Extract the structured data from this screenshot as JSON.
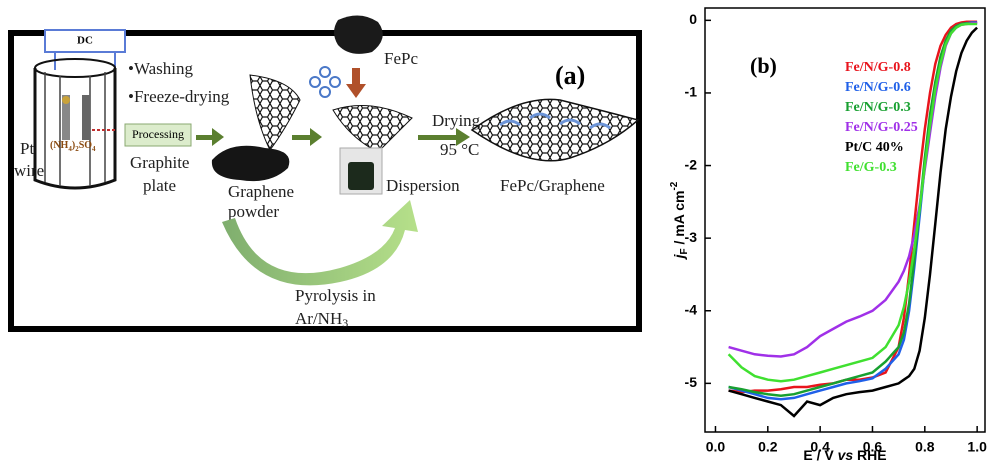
{
  "panel_a": {
    "label": "(a)",
    "power": "DC",
    "electrode": [
      "Pt",
      "wire"
    ],
    "electrolyte": [
      "(NH",
      "4",
      ")",
      "2",
      "SO",
      "4"
    ],
    "steps": [
      "•Washing",
      "•Freeze-drying"
    ],
    "processing": "Processing",
    "graphite": [
      "Graphite",
      "plate"
    ],
    "graphene": [
      "Graphene",
      "powder"
    ],
    "fepc": "FePc",
    "dispersion": "Dispersion",
    "drying": [
      "Drying",
      "95 °C"
    ],
    "product": "FePc/Graphene",
    "pyrolysis": [
      "Pyrolysis in",
      "Ar/NH",
      "3"
    ]
  },
  "chart_data": {
    "type": "line",
    "label": "(b)",
    "xlabel": [
      "E / V ",
      "vs",
      " RHE"
    ],
    "ylabel": [
      "j",
      "F",
      " / mA cm",
      "-2"
    ],
    "x": [
      0.05,
      0.1,
      0.15,
      0.2,
      0.25,
      0.3,
      0.35,
      0.4,
      0.45,
      0.5,
      0.55,
      0.6,
      0.65,
      0.7,
      0.72,
      0.74,
      0.76,
      0.78,
      0.8,
      0.82,
      0.84,
      0.86,
      0.88,
      0.9,
      0.92,
      0.94,
      0.96,
      0.98,
      1.0
    ],
    "series": [
      {
        "name": "Fe/N/G-0.8",
        "color": "#e8141c",
        "values": [
          -5.1,
          -5.12,
          -5.1,
          -5.1,
          -5.08,
          -5.05,
          -5.05,
          -5.02,
          -5.0,
          -4.95,
          -4.95,
          -4.92,
          -4.85,
          -4.5,
          -4.1,
          -3.5,
          -2.8,
          -2.1,
          -1.5,
          -1.0,
          -0.6,
          -0.35,
          -0.2,
          -0.1,
          -0.05,
          -0.03,
          -0.02,
          -0.02,
          -0.02
        ]
      },
      {
        "name": "Fe/N/G-0.6",
        "color": "#2060e8",
        "values": [
          -5.05,
          -5.1,
          -5.15,
          -5.2,
          -5.22,
          -5.2,
          -5.15,
          -5.1,
          -5.05,
          -5.0,
          -4.97,
          -4.93,
          -4.8,
          -4.6,
          -4.4,
          -4.0,
          -3.4,
          -2.7,
          -2.0,
          -1.4,
          -0.9,
          -0.55,
          -0.3,
          -0.15,
          -0.08,
          -0.05,
          -0.04,
          -0.03,
          -0.03
        ]
      },
      {
        "name": "Fe/N/G-0.3",
        "color": "#18a030",
        "values": [
          -5.05,
          -5.08,
          -5.12,
          -5.15,
          -5.17,
          -5.15,
          -5.1,
          -5.05,
          -5.0,
          -4.95,
          -4.9,
          -4.85,
          -4.7,
          -4.5,
          -4.3,
          -3.9,
          -3.3,
          -2.6,
          -1.9,
          -1.3,
          -0.85,
          -0.5,
          -0.28,
          -0.14,
          -0.08,
          -0.05,
          -0.04,
          -0.04,
          -0.04
        ]
      },
      {
        "name": "Fe/N/G-0.25",
        "color": "#a030e8",
        "values": [
          -4.5,
          -4.55,
          -4.6,
          -4.62,
          -4.63,
          -4.6,
          -4.5,
          -4.35,
          -4.25,
          -4.15,
          -4.08,
          -4.0,
          -3.85,
          -3.6,
          -3.45,
          -3.25,
          -2.95,
          -2.55,
          -2.05,
          -1.55,
          -1.05,
          -0.65,
          -0.35,
          -0.18,
          -0.1,
          -0.06,
          -0.05,
          -0.04,
          -0.04
        ]
      },
      {
        "name": "Pt/C 40%",
        "color": "#000000",
        "values": [
          -5.1,
          -5.15,
          -5.2,
          -5.25,
          -5.3,
          -5.45,
          -5.25,
          -5.3,
          -5.2,
          -5.15,
          -5.12,
          -5.1,
          -5.05,
          -5.0,
          -4.95,
          -4.9,
          -4.8,
          -4.55,
          -4.1,
          -3.5,
          -2.8,
          -2.1,
          -1.5,
          -1.05,
          -0.7,
          -0.45,
          -0.28,
          -0.17,
          -0.1
        ]
      },
      {
        "name": "Fe/G-0.3",
        "color": "#40e030",
        "values": [
          -4.6,
          -4.78,
          -4.9,
          -4.95,
          -4.97,
          -4.95,
          -4.9,
          -4.85,
          -4.8,
          -4.75,
          -4.7,
          -4.65,
          -4.5,
          -4.2,
          -3.95,
          -3.6,
          -3.15,
          -2.6,
          -2.0,
          -1.45,
          -0.95,
          -0.6,
          -0.33,
          -0.18,
          -0.1,
          -0.06,
          -0.05,
          -0.05,
          -0.05
        ]
      }
    ],
    "xlim": [
      -0.04,
      1.03
    ],
    "ylim": [
      -5.67,
      0.17
    ],
    "xticks": [
      {
        "value": 0,
        "label": "0.0"
      },
      0.2,
      0.4,
      0.6,
      0.8,
      {
        "value": 1,
        "label": "1.0"
      }
    ],
    "yticks": [
      0,
      -1,
      -2,
      -3,
      -4,
      -5
    ],
    "legend": "upper right"
  }
}
